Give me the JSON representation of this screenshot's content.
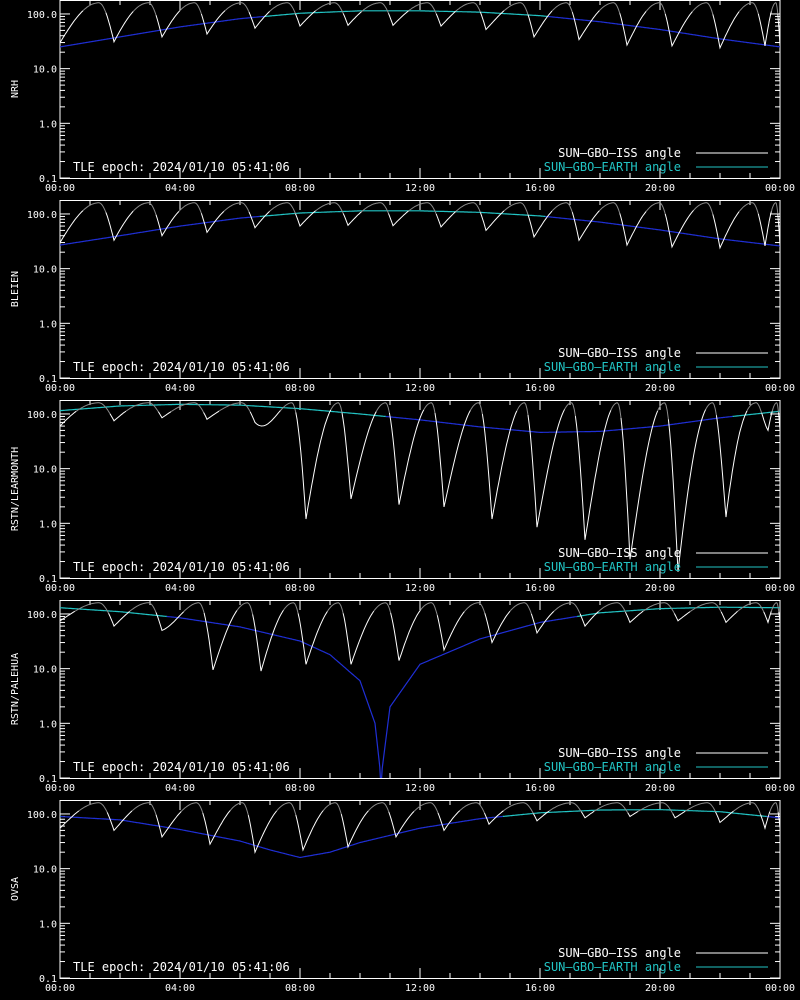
{
  "legend": {
    "iss_label": "SUN–GBO–ISS angle",
    "earth_label": "SUN–GBO–EARTH angle"
  },
  "colors": {
    "background": "#000000",
    "axis": "#ffffff",
    "iss_line": "#ffffff",
    "earth_day": "#22c4c4",
    "earth_night": "#1f2fd6",
    "iss_faded": "#8a8a8a"
  },
  "x_tick_labels": [
    "00:00",
    "04:00",
    "08:00",
    "12:00",
    "16:00",
    "20:00",
    "00:00"
  ],
  "y_tick_labels": [
    "100.0",
    "10.0",
    "1.0",
    "0.1"
  ],
  "chart_data": [
    {
      "type": "line",
      "scale": "log",
      "ylabel": "NRH",
      "annotation": "TLE epoch: 2024/01/10 05:41:06",
      "xlim_hours": [
        0,
        24
      ],
      "ylim": [
        0.1,
        180
      ],
      "legend_position": "bottom-right",
      "series": [
        {
          "name": "SUN–GBO–EARTH angle",
          "x_hours": [
            0,
            2,
            4,
            6,
            8,
            10,
            12,
            14,
            16,
            18,
            20,
            22,
            24
          ],
          "values": [
            25,
            38,
            58,
            82,
            103,
            114,
            114,
            108,
            93,
            72,
            52,
            35,
            25
          ]
        },
        {
          "name": "SUN–GBO–ISS angle",
          "orbit_period_hours": 1.545,
          "orbit_phase_hours": 0.9,
          "minima_hours": [
            0,
            1.8,
            3.4,
            4.9,
            6.5,
            8.0,
            9.6,
            11.1,
            12.7,
            14.2,
            15.8,
            17.3,
            18.9,
            20.4,
            22.0,
            23.5
          ],
          "minima_values": [
            30,
            31,
            38,
            43,
            55,
            60,
            62,
            62,
            60,
            52,
            38,
            34,
            27,
            26,
            24,
            26
          ],
          "peak_value": 160
        }
      ]
    },
    {
      "type": "line",
      "scale": "log",
      "ylabel": "BLEIEN",
      "annotation": "TLE epoch: 2024/01/10 05:41:06",
      "xlim_hours": [
        0,
        24
      ],
      "ylim": [
        0.1,
        180
      ],
      "legend_position": "bottom-right",
      "series": [
        {
          "name": "SUN–GBO–EARTH angle",
          "x_hours": [
            0,
            2,
            4,
            6,
            8,
            10,
            12,
            14,
            16,
            18,
            20,
            22,
            24
          ],
          "values": [
            27,
            40,
            60,
            84,
            104,
            114,
            114,
            107,
            92,
            71,
            51,
            35,
            26
          ]
        },
        {
          "name": "SUN–GBO–ISS angle",
          "orbit_period_hours": 1.545,
          "orbit_phase_hours": 0.9,
          "minima_hours": [
            0,
            1.8,
            3.4,
            4.9,
            6.5,
            8.0,
            9.6,
            11.1,
            12.7,
            14.2,
            15.8,
            17.3,
            18.9,
            20.4,
            22.0,
            23.5
          ],
          "minima_values": [
            30,
            33,
            40,
            46,
            56,
            60,
            62,
            61,
            58,
            50,
            38,
            33,
            27,
            25,
            24,
            26
          ],
          "peak_value": 160
        }
      ]
    },
    {
      "type": "line",
      "scale": "log",
      "ylabel": "RSTN/LEARMONTH",
      "annotation": "TLE epoch: 2024/01/10 05:41:06",
      "xlim_hours": [
        0,
        24
      ],
      "ylim": [
        0.1,
        180
      ],
      "legend_position": "bottom-right",
      "series": [
        {
          "name": "SUN–GBO–EARTH angle",
          "x_hours": [
            0,
            2,
            4,
            6,
            8,
            10,
            12,
            14,
            16,
            18,
            20,
            22,
            24
          ],
          "values": [
            115,
            140,
            150,
            145,
            125,
            100,
            78,
            58,
            46,
            48,
            60,
            85,
            112
          ]
        },
        {
          "name": "SUN–GBO–ISS angle",
          "orbit_period_hours": 1.545,
          "orbit_phase_hours": 0.9,
          "minima_hours": [
            0,
            1.8,
            3.4,
            4.9,
            6.5,
            8.2,
            9.7,
            11.3,
            12.8,
            14.4,
            15.9,
            17.5,
            19.0,
            20.6,
            22.2,
            23.6
          ],
          "minima_values": [
            60,
            75,
            85,
            80,
            70,
            1.2,
            2.8,
            2.2,
            2.0,
            1.2,
            0.85,
            0.5,
            0.22,
            0.13,
            1.3,
            50
          ],
          "peak_value": 160
        }
      ]
    },
    {
      "type": "line",
      "scale": "log",
      "ylabel": "RSTN/PALEHUA",
      "annotation": "TLE epoch: 2024/01/10 05:41:06",
      "xlim_hours": [
        0,
        24
      ],
      "ylim": [
        0.1,
        180
      ],
      "legend_position": "bottom-right",
      "series": [
        {
          "name": "SUN–GBO–EARTH angle",
          "x_hours": [
            0,
            2,
            4,
            6,
            8,
            9,
            10,
            10.5,
            10.7,
            11,
            12,
            14,
            16,
            18,
            20,
            22,
            24
          ],
          "values": [
            130,
            110,
            85,
            58,
            32,
            18,
            6,
            1.0,
            0.1,
            2,
            12,
            35,
            70,
            105,
            125,
            133,
            130
          ],
          "dip_hours": 10.7
        },
        {
          "name": "SUN–GBO–ISS angle",
          "orbit_period_hours": 1.545,
          "orbit_phase_hours": 0.9,
          "minima_hours": [
            0,
            1.8,
            3.4,
            5.1,
            6.7,
            8.2,
            9.7,
            11.3,
            12.8,
            14.4,
            15.9,
            17.5,
            19.0,
            20.6,
            22.2,
            23.6
          ],
          "minima_values": [
            75,
            60,
            50,
            9.5,
            9.0,
            12,
            12,
            14,
            22,
            30,
            45,
            60,
            70,
            75,
            70,
            70
          ],
          "peak_value": 160
        }
      ]
    },
    {
      "type": "line",
      "scale": "log",
      "ylabel": "OVSA",
      "annotation": "TLE epoch: 2024/01/10 05:41:06",
      "xlim_hours": [
        0,
        24
      ],
      "ylim": [
        0.1,
        180
      ],
      "legend_position": "bottom-right",
      "series": [
        {
          "name": "SUN–GBO–EARTH angle",
          "x_hours": [
            0,
            2,
            4,
            6,
            7,
            8,
            9,
            10,
            12,
            14,
            16,
            18,
            20,
            22,
            24
          ],
          "values": [
            90,
            78,
            52,
            32,
            22,
            16,
            20,
            30,
            55,
            82,
            105,
            118,
            120,
            110,
            85
          ]
        },
        {
          "name": "SUN–GBO–ISS angle",
          "orbit_period_hours": 1.545,
          "orbit_phase_hours": 0.9,
          "minima_hours": [
            0,
            1.8,
            3.4,
            5.0,
            6.5,
            8.1,
            9.6,
            11.2,
            12.8,
            14.3,
            15.9,
            17.5,
            19.0,
            20.5,
            22.0,
            23.5
          ],
          "minima_values": [
            55,
            50,
            38,
            28,
            20,
            22,
            25,
            38,
            50,
            65,
            75,
            85,
            90,
            85,
            70,
            55
          ],
          "peak_value": 160
        }
      ]
    }
  ]
}
